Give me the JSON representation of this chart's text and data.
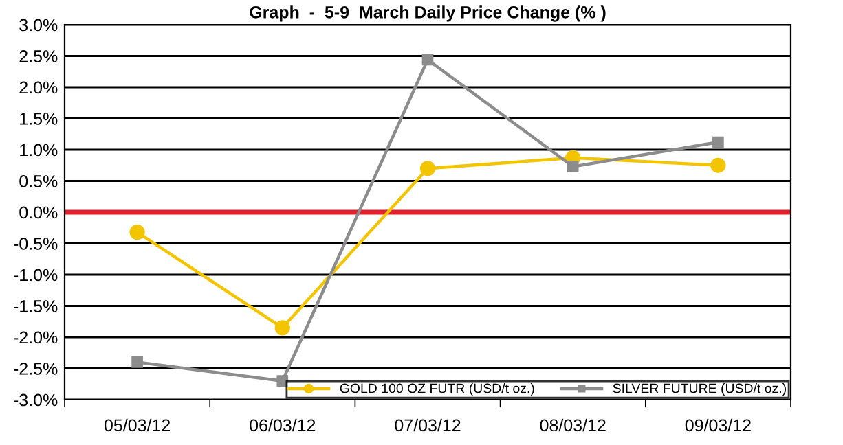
{
  "chart_data": {
    "type": "line",
    "title": "Graph  -  5-9  March Daily Price Change (% )",
    "categories": [
      "05/03/12",
      "06/03/12",
      "07/03/12",
      "08/03/12",
      "09/03/12"
    ],
    "series": [
      {
        "name": "GOLD 100 OZ FUTR (USD/t oz.)",
        "color": "#f2c500",
        "marker": "circle",
        "values": [
          -0.32,
          -1.85,
          0.7,
          0.87,
          0.75
        ]
      },
      {
        "name": "SILVER FUTURE (USD/t oz.)",
        "color": "#8c8c8c",
        "marker": "square",
        "values": [
          -2.4,
          -2.7,
          2.44,
          0.73,
          1.12
        ]
      }
    ],
    "ylim": [
      -3.0,
      3.0
    ],
    "yticks": [
      {
        "value": -3.0,
        "label": "-3.0%"
      },
      {
        "value": -2.5,
        "label": "-2.5%"
      },
      {
        "value": -2.0,
        "label": "-2.0%"
      },
      {
        "value": -1.5,
        "label": "-1.5%"
      },
      {
        "value": -1.0,
        "label": "-1.0%"
      },
      {
        "value": -0.5,
        "label": "-0.5%"
      },
      {
        "value": 0.0,
        "label": "0.0%"
      },
      {
        "value": 0.5,
        "label": "0.5%"
      },
      {
        "value": 1.0,
        "label": "1.0%"
      },
      {
        "value": 1.5,
        "label": "1.5%"
      },
      {
        "value": 2.0,
        "label": "2.0%"
      },
      {
        "value": 2.5,
        "label": "2.5%"
      },
      {
        "value": 3.0,
        "label": "3.0%"
      }
    ],
    "ref_lines": [
      {
        "axis": "y",
        "value": 0.0,
        "color": "#e0202a"
      }
    ],
    "grid": "y",
    "legend": "bottom right",
    "line_style": "solid"
  }
}
